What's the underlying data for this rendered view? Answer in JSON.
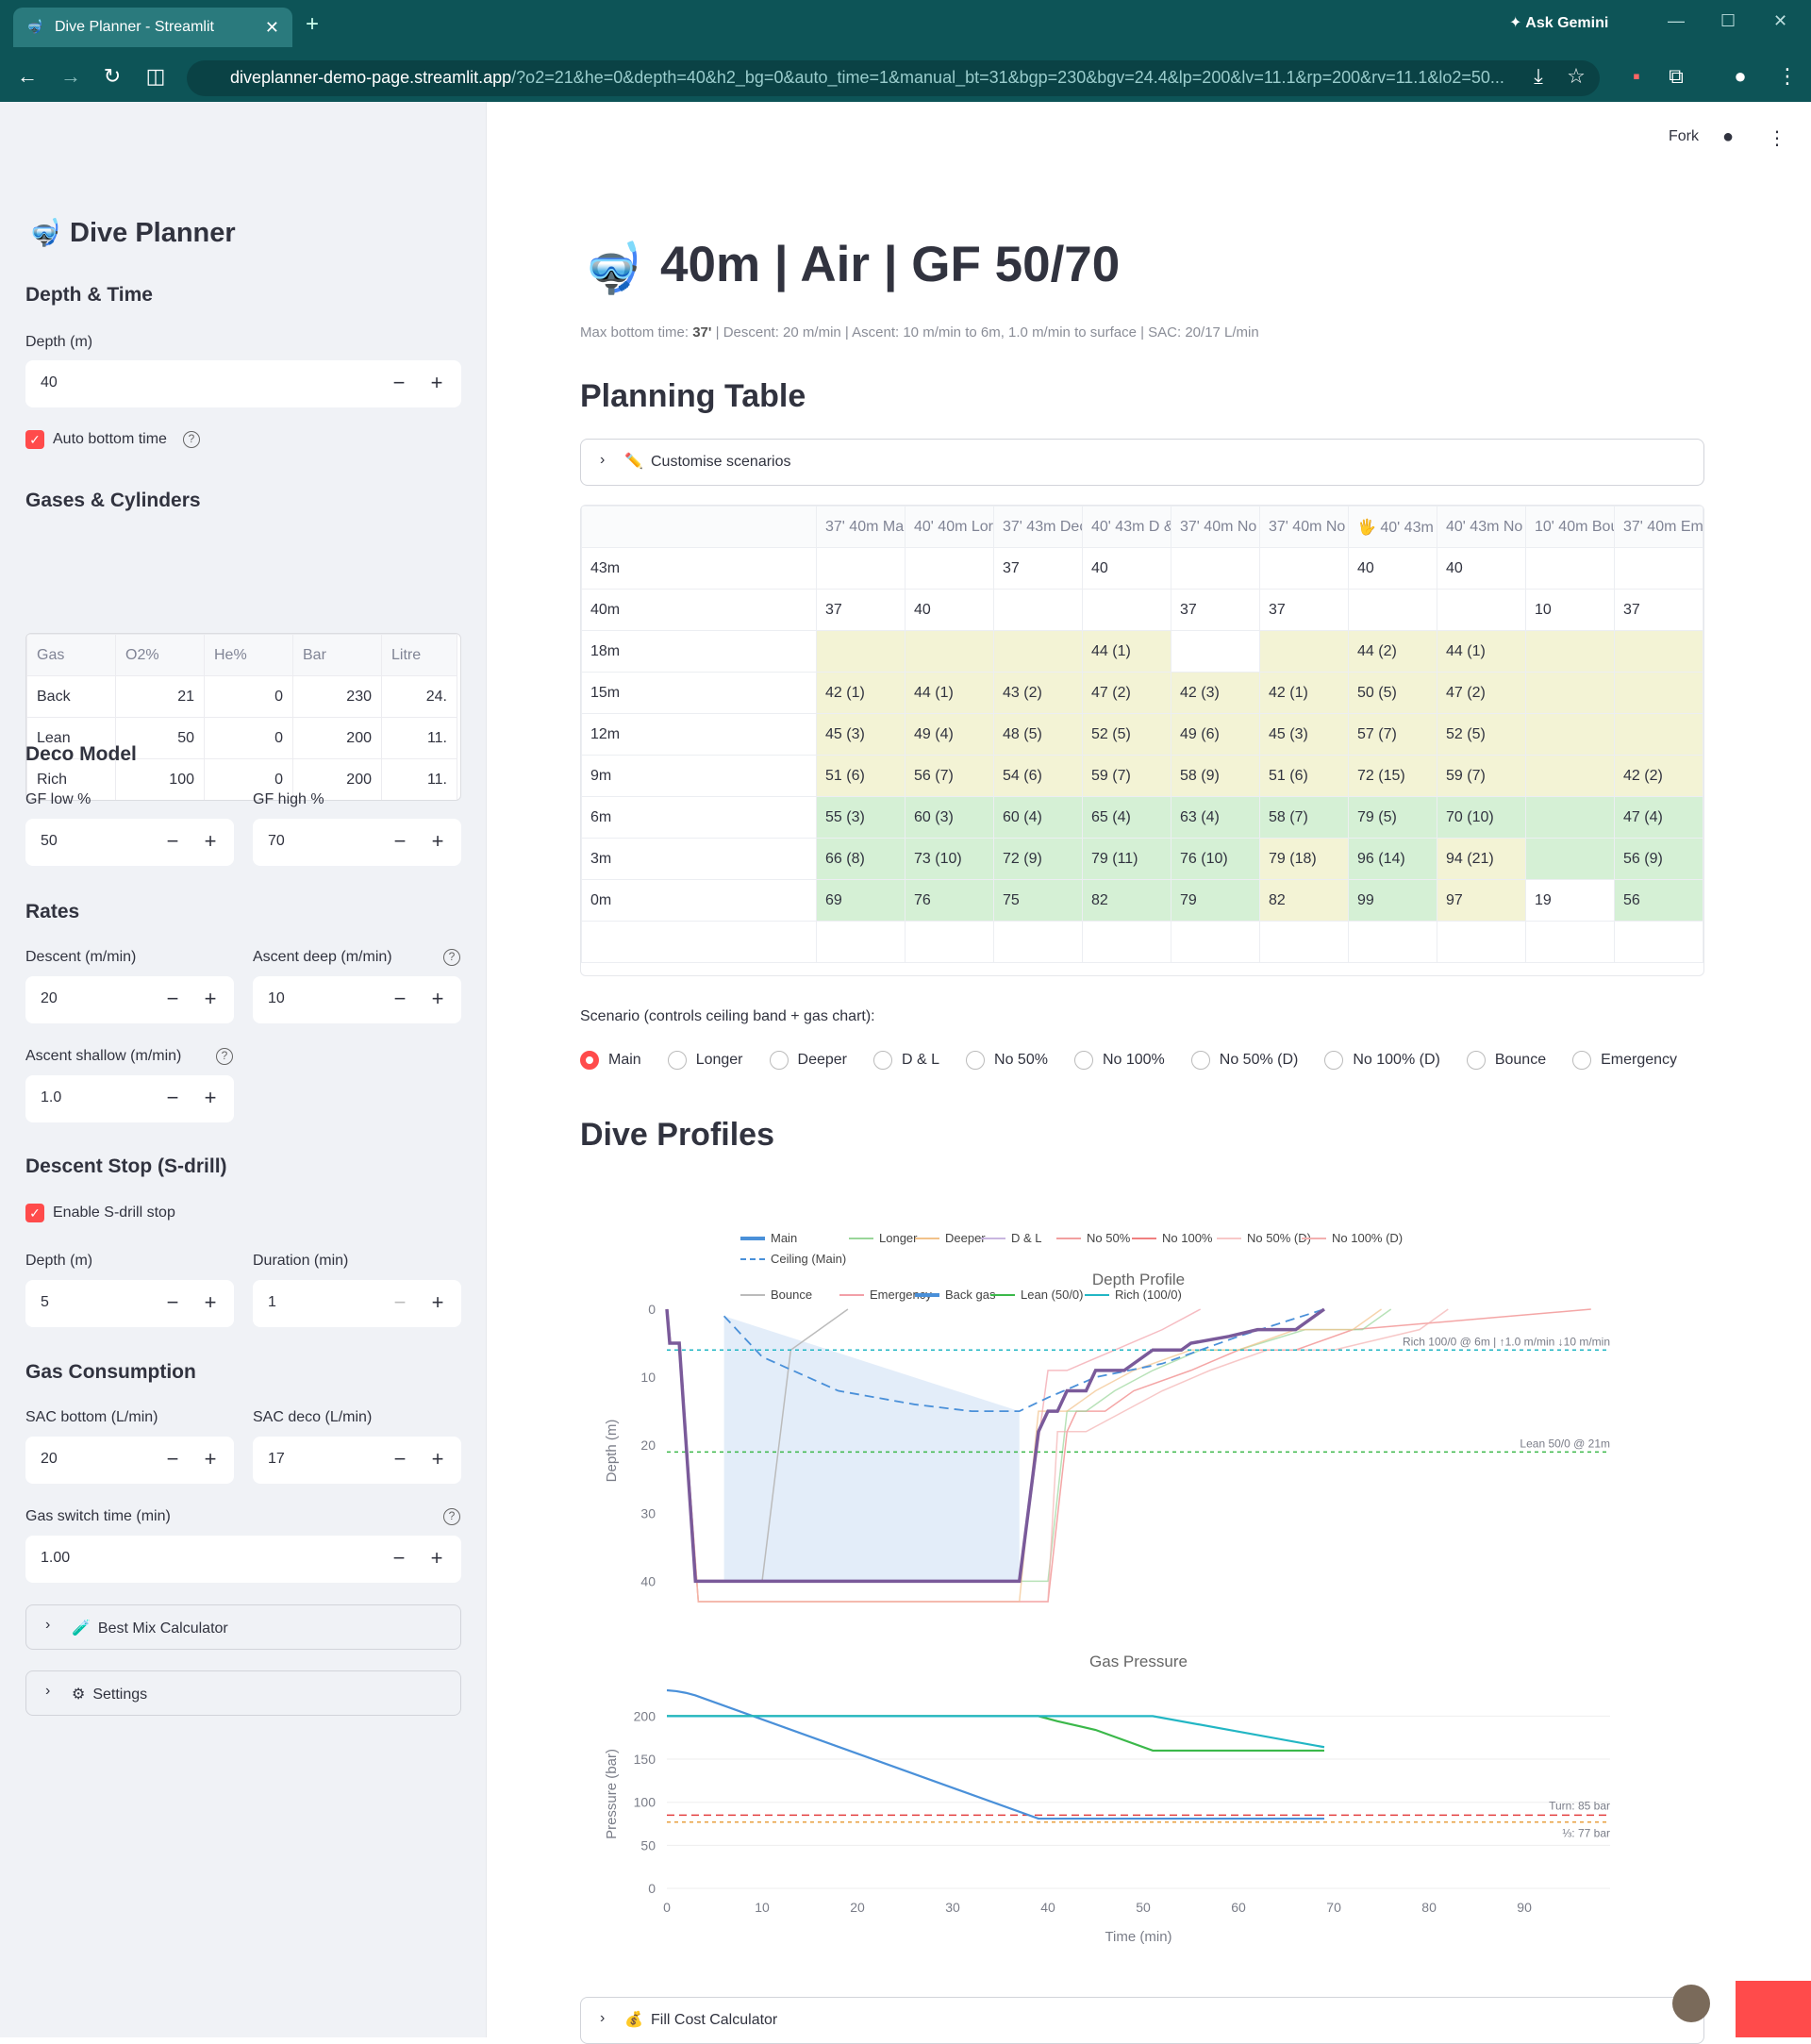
{
  "browser": {
    "tab_title": "Dive Planner - Streamlit",
    "url_host": "diveplanner-demo-page.streamlit.app",
    "url_rest": "/?o2=21&he=0&depth=40&h2_bg=0&auto_time=1&manual_bt=31&bgp=230&bgv=24.4&lp=200&lv=11.1&rp=200&rv=11.1&lo2=50...",
    "gemini": "Ask Gemini"
  },
  "sidebar": {
    "title": "Dive Planner",
    "depth_time": {
      "heading": "Depth & Time",
      "depth_label": "Depth (m)",
      "depth_value": "40",
      "auto_label": "Auto bottom time"
    },
    "gases": {
      "heading": "Gases & Cylinders",
      "headers": [
        "Gas",
        "O2%",
        "He%",
        "Bar",
        "Litre"
      ],
      "rows": [
        [
          "Back",
          "21",
          "0",
          "230",
          "24."
        ],
        [
          "Lean",
          "50",
          "0",
          "200",
          "11."
        ],
        [
          "Rich",
          "100",
          "0",
          "200",
          "11."
        ]
      ]
    },
    "deco": {
      "heading": "Deco Model",
      "gf_low_label": "GF low %",
      "gf_low": "50",
      "gf_high_label": "GF high %",
      "gf_high": "70"
    },
    "rates": {
      "heading": "Rates",
      "descent_label": "Descent (m/min)",
      "descent": "20",
      "ascent_deep_label": "Ascent deep (m/min)",
      "ascent_deep": "10",
      "ascent_shallow_label": "Ascent shallow (m/min)",
      "ascent_shallow": "1.0"
    },
    "sdrill": {
      "heading": "Descent Stop (S-drill)",
      "enable_label": "Enable S-drill stop",
      "depth_label": "Depth (m)",
      "depth": "5",
      "duration_label": "Duration (min)",
      "duration": "1"
    },
    "consumption": {
      "heading": "Gas Consumption",
      "sac_bottom_label": "SAC bottom (L/min)",
      "sac_bottom": "20",
      "sac_deco_label": "SAC deco (L/min)",
      "sac_deco": "17",
      "switch_label": "Gas switch time (min)",
      "switch": "1.00"
    },
    "best_mix": "Best Mix Calculator",
    "settings": "Settings"
  },
  "header": {
    "fork": "Fork"
  },
  "main": {
    "title": "40m | Air | GF 50/70",
    "subtitle_pre": "Max bottom time: ",
    "subtitle_bold": "37'",
    "subtitle_post": " | Descent: 20 m/min | Ascent: 10 m/min to 6m, 1.0 m/min to surface | SAC: 20/17 L/min",
    "planning_heading": "Planning Table",
    "customise": "Customise scenarios",
    "table": {
      "headers": [
        "",
        "37' 40m Ma",
        "40' 40m Lor",
        "37' 43m Dec",
        "40' 43m D &",
        "37' 40m No",
        "37' 40m No",
        "🖐 40' 43m",
        "40' 43m No",
        "10' 40m Bou",
        "37' 40m Em"
      ],
      "rows": [
        [
          "43m",
          "",
          "",
          "37",
          "40",
          "",
          "",
          "40",
          "40",
          "",
          ""
        ],
        [
          "40m",
          "37",
          "40",
          "",
          "",
          "37",
          "37",
          "",
          "",
          "10",
          "37"
        ],
        [
          "18m",
          "",
          "",
          "",
          "44 (1)",
          "",
          "",
          "44 (2)",
          "44 (1)",
          "",
          ""
        ],
        [
          "15m",
          "42 (1)",
          "44 (1)",
          "43 (2)",
          "47 (2)",
          "42 (3)",
          "42 (1)",
          "50 (5)",
          "47 (2)",
          "",
          ""
        ],
        [
          "12m",
          "45 (3)",
          "49 (4)",
          "48 (5)",
          "52 (5)",
          "49 (6)",
          "45 (3)",
          "57 (7)",
          "52 (5)",
          "",
          ""
        ],
        [
          "9m",
          "51 (6)",
          "56 (7)",
          "54 (6)",
          "59 (7)",
          "58 (9)",
          "51 (6)",
          "72 (15)",
          "59 (7)",
          "",
          "42 (2)"
        ],
        [
          "6m",
          "55 (3)",
          "60 (3)",
          "60 (4)",
          "65 (4)",
          "63 (4)",
          "58 (7)",
          "79 (5)",
          "70 (10)",
          "",
          "47 (4)"
        ],
        [
          "3m",
          "66 (8)",
          "73 (10)",
          "72 (9)",
          "79 (11)",
          "76 (10)",
          "79 (18)",
          "96 (14)",
          "94 (21)",
          "",
          "56 (9)"
        ],
        [
          "0m",
          "69",
          "76",
          "75",
          "82",
          "79",
          "82",
          "99",
          "97",
          "19",
          "56"
        ],
        [
          "",
          "",
          "",
          "",
          "",
          "",
          "",
          "",
          "",
          "",
          ""
        ]
      ]
    },
    "scenario_label": "Scenario (controls ceiling band + gas chart):",
    "scenarios": [
      "Main",
      "Longer",
      "Deeper",
      "D & L",
      "No 50%",
      "No 100%",
      "No 50% (D)",
      "No 100% (D)",
      "Bounce",
      "Emergency"
    ],
    "profiles_heading": "Dive Profiles",
    "fill_cost": "Fill Cost Calculator"
  },
  "chart_data": [
    {
      "type": "line",
      "title": "Depth Profile",
      "xlabel": "",
      "ylabel": "Depth (m)",
      "ylim": [
        43,
        0
      ],
      "xlim": [
        0,
        99
      ],
      "yticks": [
        "0",
        "10",
        "20",
        "30",
        "40"
      ],
      "legend": [
        "Main",
        "Longer",
        "Deeper",
        "D & L",
        "No 50%",
        "No 100%",
        "No 50% (D)",
        "No 100% (D)",
        "Ceiling (Main)",
        "Bounce",
        "Emergency",
        "Back gas",
        "Lean (50/0)",
        "Rich (100/0)"
      ],
      "annotations": [
        "Rich 100/0 @ 6m | ↑1.0 m/min ↓10 m/min",
        "Lean 50/0 @ 21m"
      ],
      "series": [
        {
          "name": "Main",
          "x": [
            0,
            0.3,
            1.3,
            3,
            37,
            39,
            40,
            41,
            42,
            44,
            45,
            48,
            51,
            54,
            55,
            59,
            62,
            66,
            69
          ],
          "y": [
            0,
            5,
            5,
            40,
            40,
            18,
            15,
            15,
            12,
            12,
            9,
            9,
            6,
            6,
            5,
            4,
            3,
            3,
            0
          ]
        },
        {
          "name": "Ceiling (Main)",
          "x": [
            6,
            10,
            18,
            26,
            32,
            37,
            40,
            45,
            52,
            60,
            69
          ],
          "y": [
            1,
            7,
            12,
            14,
            15,
            15,
            13,
            10,
            8,
            4,
            0
          ]
        },
        {
          "name": "Lean (50/0)",
          "x": [
            0,
            99
          ],
          "y": [
            21,
            21
          ]
        },
        {
          "name": "Rich (100/0)",
          "x": [
            0,
            99
          ],
          "y": [
            6,
            6
          ]
        }
      ]
    },
    {
      "type": "line",
      "title": "Gas Pressure",
      "xlabel": "Time (min)",
      "ylabel": "Pressure (bar)",
      "xlim": [
        0,
        99
      ],
      "ylim": [
        0,
        230
      ],
      "xticks": [
        "0",
        "10",
        "20",
        "30",
        "40",
        "50",
        "60",
        "70",
        "80",
        "90"
      ],
      "yticks": [
        "0",
        "50",
        "100",
        "150",
        "200"
      ],
      "annotations": [
        "Turn: 85 bar",
        "⅓: 77 bar"
      ],
      "series": [
        {
          "name": "Back gas",
          "x": [
            0,
            1,
            2,
            3,
            39,
            69
          ],
          "y": [
            230,
            229,
            227,
            224,
            81,
            81
          ]
        },
        {
          "name": "Lean (50/0)",
          "x": [
            0,
            39,
            41,
            45,
            51,
            69
          ],
          "y": [
            200,
            200,
            194,
            184,
            160,
            160
          ]
        },
        {
          "name": "Rich (100/0)",
          "x": [
            0,
            51,
            60,
            69
          ],
          "y": [
            200,
            200,
            182,
            164
          ]
        }
      ]
    }
  ],
  "colors": {
    "accent": "#ff4b4b",
    "main": "#4a90d9",
    "lean": "#3bb84a",
    "rich": "#22b6c4",
    "turn": "#e34040",
    "third": "#e8a040"
  }
}
